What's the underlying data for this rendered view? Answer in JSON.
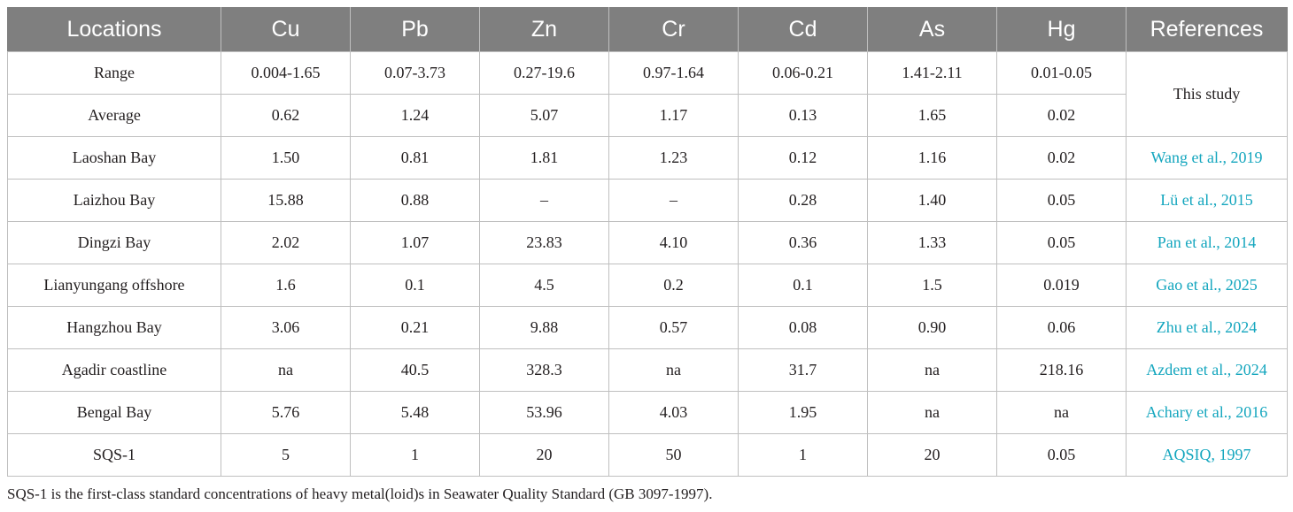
{
  "table": {
    "headers": [
      "Locations",
      "Cu",
      "Pb",
      "Zn",
      "Cr",
      "Cd",
      "As",
      "Hg",
      "References"
    ],
    "rows": [
      {
        "location": "Range",
        "cu": "0.004-1.65",
        "pb": "0.07-3.73",
        "zn": "0.27-19.6",
        "cr": "0.97-1.64",
        "cd": "0.06-0.21",
        "as": "1.41-2.11",
        "hg": "0.01-0.05"
      },
      {
        "location": "Average",
        "cu": "0.62",
        "pb": "1.24",
        "zn": "5.07",
        "cr": "1.17",
        "cd": "0.13",
        "as": "1.65",
        "hg": "0.02"
      },
      {
        "location": "Laoshan Bay",
        "cu": "1.50",
        "pb": "0.81",
        "zn": "1.81",
        "cr": "1.23",
        "cd": "0.12",
        "as": "1.16",
        "hg": "0.02",
        "ref": "Wang et al., 2019"
      },
      {
        "location": "Laizhou Bay",
        "cu": "15.88",
        "pb": "0.88",
        "zn": "–",
        "cr": "–",
        "cd": "0.28",
        "as": "1.40",
        "hg": "0.05",
        "ref": "Lü et al., 2015"
      },
      {
        "location": "Dingzi Bay",
        "cu": "2.02",
        "pb": "1.07",
        "zn": "23.83",
        "cr": "4.10",
        "cd": "0.36",
        "as": "1.33",
        "hg": "0.05",
        "ref": "Pan et al., 2014"
      },
      {
        "location": "Lianyungang offshore",
        "cu": "1.6",
        "pb": "0.1",
        "zn": "4.5",
        "cr": "0.2",
        "cd": "0.1",
        "as": "1.5",
        "hg": "0.019",
        "ref": "Gao et al., 2025"
      },
      {
        "location": "Hangzhou Bay",
        "cu": "3.06",
        "pb": "0.21",
        "zn": "9.88",
        "cr": "0.57",
        "cd": "0.08",
        "as": "0.90",
        "hg": "0.06",
        "ref": "Zhu et al., 2024"
      },
      {
        "location": "Agadir coastline",
        "cu": "na",
        "pb": "40.5",
        "zn": "328.3",
        "cr": "na",
        "cd": "31.7",
        "as": "na",
        "hg": "218.16",
        "ref": "Azdem et al., 2024"
      },
      {
        "location": "Bengal Bay",
        "cu": "5.76",
        "pb": "5.48",
        "zn": "53.96",
        "cr": "4.03",
        "cd": "1.95",
        "as": "na",
        "hg": "na",
        "ref": "Achary et al., 2016"
      },
      {
        "location": "SQS-1",
        "cu": "5",
        "pb": "1",
        "zn": "20",
        "cr": "50",
        "cd": "1",
        "as": "20",
        "hg": "0.05",
        "ref": "AQSIQ, 1997"
      }
    ],
    "this_study_ref": "This study"
  },
  "footnote": "SQS-1 is the first-class standard concentrations of heavy metal(loid)s in Seawater Quality Standard (GB 3097-1997).",
  "colors": {
    "header_bg": "#7f7f7f",
    "header_text": "#ffffff",
    "border": "#bfbfbf",
    "link": "#14a6be",
    "text": "#231f20"
  }
}
